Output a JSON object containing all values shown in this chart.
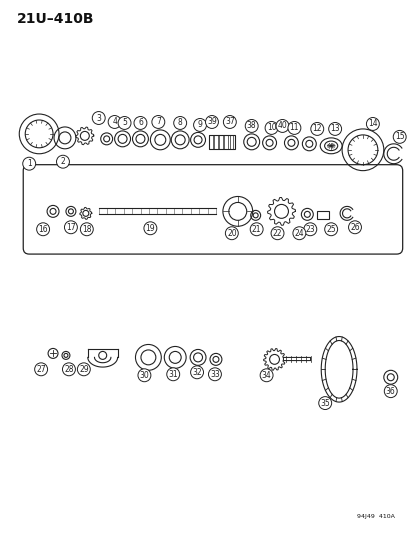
{
  "title": "21U–410B",
  "catalog_number": "94J49  410A",
  "background_color": "#ffffff",
  "line_color": "#222222",
  "label_color": "#111111",
  "figsize": [
    4.14,
    5.33
  ],
  "dpi": 100
}
